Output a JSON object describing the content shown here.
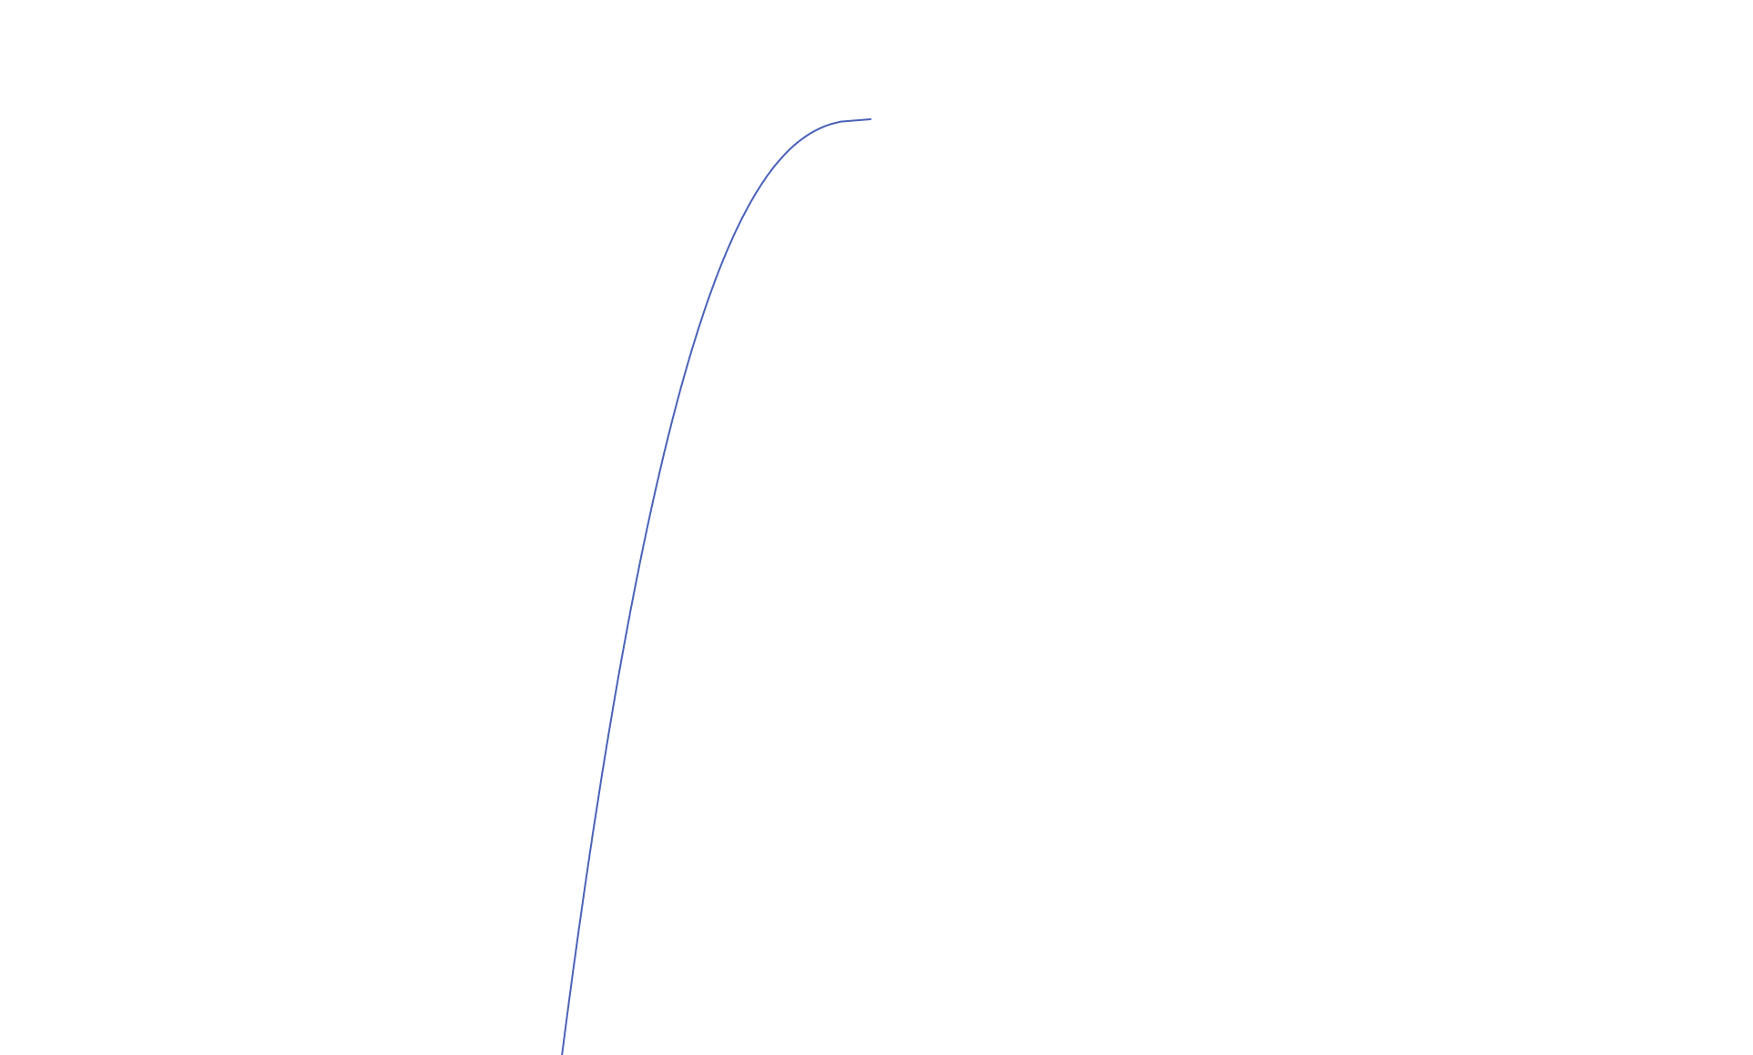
{
  "curve": {
    "stroke_color": "#4a62b8"
  }
}
